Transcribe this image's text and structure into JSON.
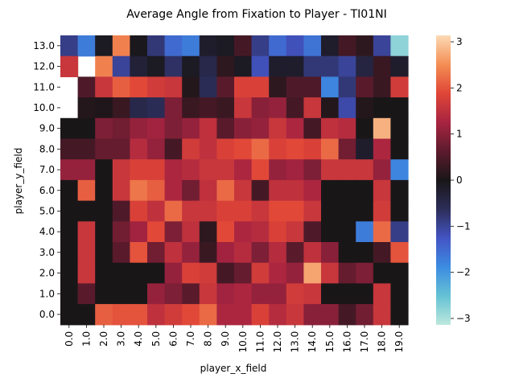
{
  "chart_data": {
    "type": "heatmap",
    "title": "Average Angle from Fixation to Player - TI01NI",
    "xlabel": "player_x_field",
    "ylabel": "player_y_field",
    "x_categories": [
      "0.0",
      "1.0",
      "2.0",
      "3.0",
      "4.0",
      "5.0",
      "6.0",
      "7.0",
      "8.0",
      "9.0",
      "10.0",
      "11.0",
      "12.0",
      "13.0",
      "14.0",
      "15.0",
      "16.0",
      "17.0",
      "18.0",
      "19.0"
    ],
    "y_categories": [
      "13.0",
      "12.0",
      "11.0",
      "10.0",
      "9.0",
      "8.0",
      "7.0",
      "6.0",
      "5.0",
      "4.0",
      "3.0",
      "2.0",
      "1.0",
      "0.0"
    ],
    "colormap": "icefire",
    "vmin": -3.14,
    "vmax": 3.14,
    "colorbar_ticks": [
      3,
      2,
      1,
      0,
      -1,
      -2,
      -3
    ],
    "colorbar_tick_labels": [
      "3",
      "2",
      "1",
      "0",
      "−1",
      "−2",
      "−3"
    ],
    "values": [
      [
        -0.9,
        -1.7,
        -0.1,
        2.4,
        -0.05,
        -0.8,
        -1.5,
        -1.7,
        -0.2,
        -0.1,
        0.4,
        -0.9,
        -1.5,
        -1.2,
        -1.6,
        -0.2,
        0.4,
        0.2,
        -1.0,
        -2.8
      ],
      [
        1.6,
        null,
        2.4,
        -1.0,
        -0.3,
        -0.1,
        -0.7,
        -0.1,
        -0.5,
        0.2,
        -0.1,
        -1.2,
        -0.2,
        -0.2,
        -0.8,
        -0.8,
        -1.0,
        -0.4,
        0.3,
        -0.2
      ],
      [
        null,
        0.5,
        1.6,
        2.1,
        1.9,
        1.7,
        1.6,
        0.1,
        -0.6,
        0.6,
        1.8,
        1.8,
        0.2,
        0.5,
        0.5,
        -1.8,
        -0.8,
        0.6,
        0.3,
        1.7
      ],
      [
        null,
        0.1,
        0.05,
        0.3,
        -0.5,
        -0.6,
        0.9,
        0.3,
        0.4,
        0.3,
        1.6,
        1.0,
        1.1,
        0.4,
        1.6,
        0.1,
        -1.1,
        0.1,
        0.0,
        0.0
      ],
      [
        0.0,
        0.0,
        0.9,
        0.8,
        1.1,
        1.2,
        0.9,
        1.1,
        1.5,
        0.6,
        1.0,
        1.1,
        1.6,
        1.3,
        0.4,
        1.5,
        1.4,
        0.0,
        2.8,
        0.0
      ],
      [
        0.4,
        0.4,
        0.7,
        0.7,
        1.4,
        1.1,
        0.4,
        1.7,
        1.5,
        1.8,
        1.9,
        2.2,
        1.8,
        1.9,
        1.8,
        2.2,
        0.8,
        -0.2,
        1.3,
        0.0
      ],
      [
        1.1,
        1.1,
        0.0,
        1.6,
        1.8,
        1.8,
        1.3,
        1.4,
        1.6,
        1.6,
        1.3,
        1.9,
        1.1,
        1.2,
        0.9,
        1.6,
        1.6,
        1.6,
        1.1,
        -1.8
      ],
      [
        0.0,
        2.1,
        0.0,
        1.6,
        2.3,
        2.1,
        1.3,
        0.8,
        1.5,
        2.2,
        1.6,
        0.4,
        1.5,
        1.5,
        1.3,
        0.0,
        0.0,
        0.0,
        1.6,
        0.0
      ],
      [
        0.0,
        0.0,
        0.0,
        0.5,
        1.8,
        1.5,
        2.2,
        1.6,
        1.6,
        1.8,
        1.8,
        1.6,
        1.9,
        1.9,
        1.6,
        0.0,
        0.0,
        0.0,
        1.7,
        0.0
      ],
      [
        0.0,
        1.6,
        0.0,
        0.8,
        1.2,
        1.9,
        0.9,
        1.5,
        0.2,
        1.9,
        1.3,
        1.4,
        1.8,
        1.6,
        0.5,
        0.0,
        0.0,
        -1.7,
        2.2,
        -0.9
      ],
      [
        0.0,
        1.6,
        0.0,
        0.6,
        2.0,
        0.8,
        1.5,
        1.1,
        0.3,
        1.2,
        1.4,
        0.9,
        1.4,
        0.6,
        1.5,
        1.0,
        0.0,
        0.0,
        0.4,
        2.0
      ],
      [
        0.0,
        1.6,
        0.0,
        0.0,
        0.0,
        0.0,
        1.1,
        1.8,
        1.7,
        0.4,
        0.7,
        1.7,
        1.3,
        1.1,
        2.7,
        1.6,
        0.7,
        0.9,
        0.0,
        0.0
      ],
      [
        0.0,
        0.6,
        0.0,
        0.0,
        0.0,
        1.1,
        0.9,
        0.6,
        1.6,
        1.2,
        1.3,
        1.1,
        1.1,
        1.7,
        1.6,
        0.0,
        0.0,
        0.0,
        1.6,
        0.0
      ],
      [
        0.0,
        0.0,
        2.1,
        2.0,
        2.0,
        1.5,
        1.7,
        1.9,
        2.2,
        1.3,
        1.3,
        1.8,
        1.4,
        1.6,
        1.0,
        1.0,
        0.4,
        0.8,
        1.6,
        0.0
      ]
    ]
  }
}
